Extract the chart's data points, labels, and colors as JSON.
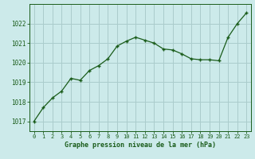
{
  "x": [
    0,
    1,
    2,
    3,
    4,
    5,
    6,
    7,
    8,
    9,
    10,
    11,
    12,
    13,
    14,
    15,
    16,
    17,
    18,
    19,
    20,
    21,
    22,
    23
  ],
  "y": [
    1017.0,
    1017.7,
    1018.2,
    1018.55,
    1019.2,
    1019.1,
    1019.6,
    1019.85,
    1020.2,
    1020.85,
    1021.1,
    1021.3,
    1021.15,
    1021.0,
    1020.7,
    1020.65,
    1020.45,
    1020.2,
    1020.15,
    1020.15,
    1020.1,
    1021.3,
    1022.0,
    1022.55
  ],
  "line_color": "#1a5c1a",
  "marker": "+",
  "background_color": "#cceaea",
  "grid_color": "#aacccc",
  "xlabel": "Graphe pression niveau de la mer (hPa)",
  "xlabel_color": "#1a5c1a",
  "tick_color": "#1a5c1a",
  "ylabel_ticks": [
    1017,
    1018,
    1019,
    1020,
    1021,
    1022
  ],
  "ylim": [
    1016.5,
    1023.0
  ],
  "xlim": [
    -0.5,
    23.5
  ],
  "spine_color": "#1a5c1a"
}
